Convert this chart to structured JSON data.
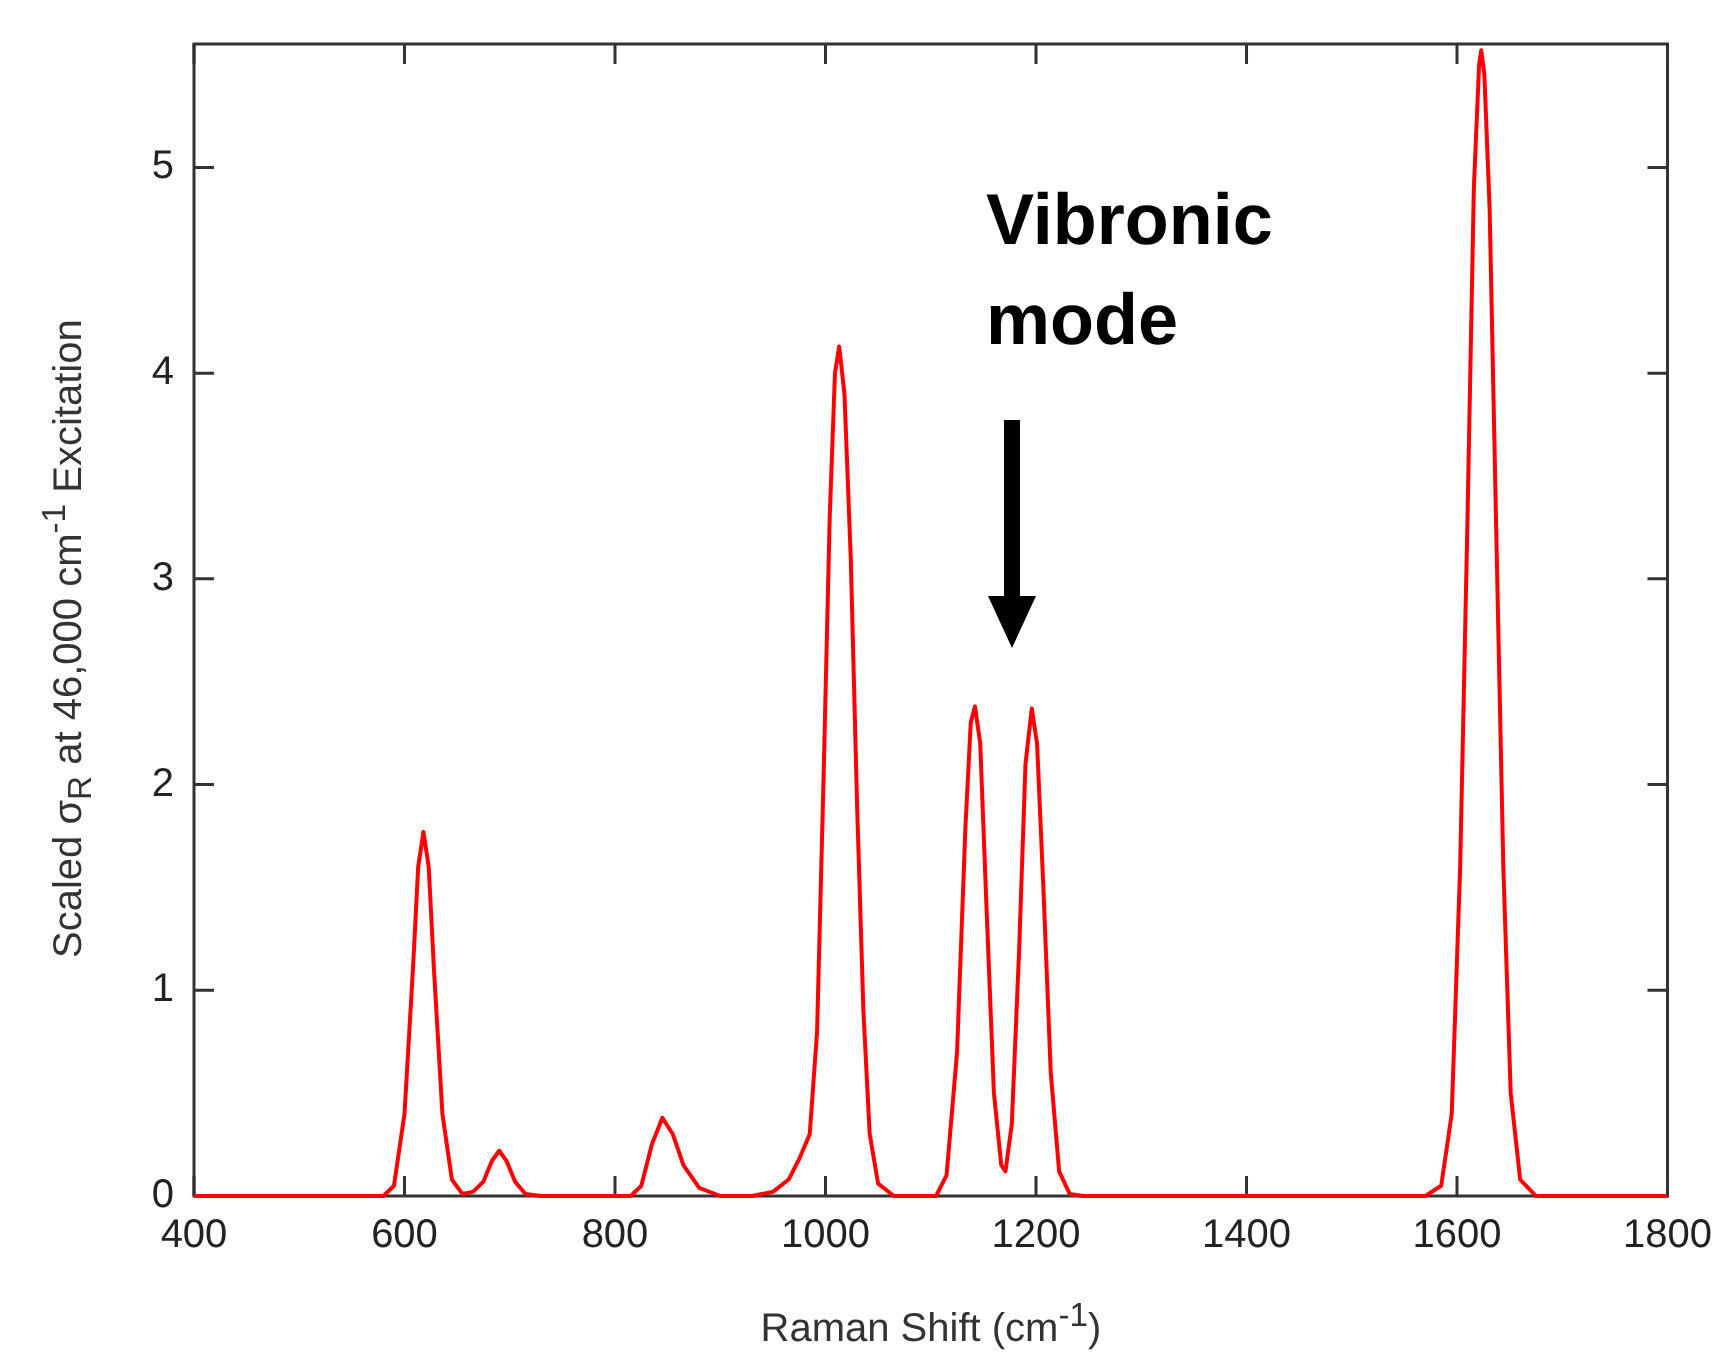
{
  "chart_data": {
    "type": "line",
    "xlabel": "Raman Shift (cm$^{-1}$)",
    "ylabel": "Scaled σ$_{R}$ at 46,000 cm$^{-1}$ Excitation",
    "x": [
      400,
      580,
      590,
      600,
      608,
      613,
      618,
      623,
      628,
      636,
      645,
      655,
      665,
      675,
      683,
      690,
      697,
      705,
      715,
      730,
      815,
      825,
      835,
      845,
      855,
      865,
      880,
      900,
      930,
      950,
      965,
      975,
      985,
      992,
      998,
      1004,
      1009,
      1013,
      1018,
      1024,
      1030,
      1036,
      1042,
      1050,
      1065,
      1105,
      1115,
      1125,
      1133,
      1138,
      1142,
      1147,
      1153,
      1160,
      1167,
      1171,
      1177,
      1184,
      1190,
      1196,
      1201,
      1207,
      1214,
      1222,
      1232,
      1245,
      1570,
      1585,
      1595,
      1603,
      1610,
      1616,
      1621,
      1623,
      1626,
      1631,
      1637,
      1644,
      1651,
      1660,
      1675,
      1800
    ],
    "series": [
      {
        "color": "#ff0000",
        "values": [
          0,
          0,
          0.05,
          0.4,
          1.1,
          1.6,
          1.77,
          1.6,
          1.1,
          0.4,
          0.08,
          0.01,
          0.02,
          0.07,
          0.17,
          0.22,
          0.17,
          0.07,
          0.01,
          0,
          0,
          0.05,
          0.25,
          0.38,
          0.3,
          0.15,
          0.04,
          0,
          0,
          0.02,
          0.08,
          0.18,
          0.3,
          0.8,
          2.0,
          3.3,
          4.0,
          4.13,
          3.9,
          3.1,
          1.9,
          0.9,
          0.3,
          0.06,
          0,
          0,
          0.1,
          0.7,
          1.8,
          2.3,
          2.38,
          2.2,
          1.4,
          0.5,
          0.15,
          0.12,
          0.35,
          1.2,
          2.1,
          2.37,
          2.2,
          1.5,
          0.6,
          0.12,
          0.01,
          0,
          0,
          0.05,
          0.4,
          1.6,
          3.3,
          4.9,
          5.5,
          5.57,
          5.45,
          4.8,
          3.3,
          1.6,
          0.5,
          0.08,
          0,
          0
        ]
      }
    ],
    "xlim": [
      400,
      1800
    ],
    "xticks": [
      400,
      600,
      800,
      1000,
      1200,
      1400,
      1600,
      1800
    ],
    "ylim": [
      0,
      5.6
    ],
    "yticks": [
      0,
      1,
      2,
      3,
      4,
      5
    ],
    "grid": false,
    "legend": false,
    "marker": "none",
    "line_style": "solid",
    "annotations": [
      "Vibronic mode"
    ]
  }
}
